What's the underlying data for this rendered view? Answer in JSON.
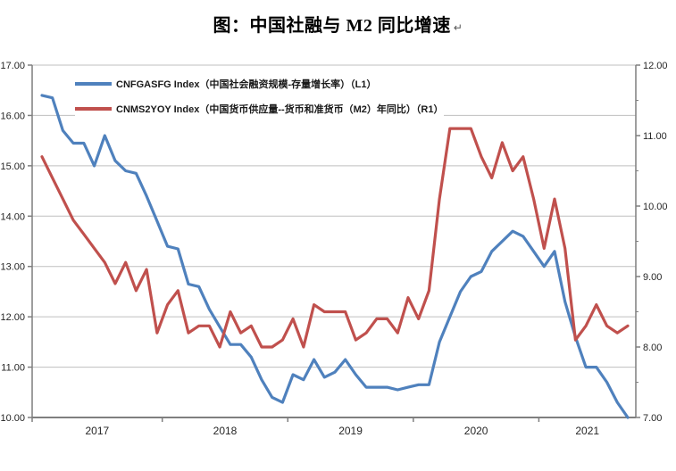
{
  "title": {
    "text": "图：中国社融与 M2 同比增速",
    "paragraph_mark": "↵"
  },
  "legend": {
    "items": [
      {
        "label": "CNFGASFG Index（中国社会融资规模-存量增长率）（L1）",
        "color": "#4F81BD"
      },
      {
        "label": "CNMS2YOY Index（中国货币供应量--货币和准货币（M2）年同比）（R1）",
        "color": "#C0504D"
      }
    ]
  },
  "chart_data": {
    "type": "line",
    "title": "图：中国社融与 M2 同比增速",
    "x_monthly_start": "2017-01",
    "x_monthly_end": "2021-09",
    "x_tick_labels": [
      "2017",
      "2018",
      "2019",
      "2020",
      "2021"
    ],
    "left_axis": {
      "min": 10,
      "max": 17,
      "tick_step": 1,
      "tick_labels": [
        "17.00",
        "16.00",
        "15.00",
        "14.00",
        "13.00",
        "12.00",
        "11.00",
        "10.00"
      ]
    },
    "right_axis": {
      "min": 7,
      "max": 12,
      "tick_step": 1,
      "minor_tick_step": 0.5,
      "tick_labels": [
        "12.00",
        "11.00",
        "10.00",
        "9.00",
        "8.00",
        "7.00"
      ]
    },
    "grid": {
      "horizontal": true,
      "color": "#BFBFBF",
      "axis_color": "#7F7F7F"
    },
    "legend_position": "top-left-inside",
    "series": [
      {
        "name": "CNFGASFG Index（中国社会融资规模-存量增长率）（L1）",
        "axis": "left",
        "color": "#4F81BD",
        "values": [
          16.4,
          16.35,
          15.7,
          15.45,
          15.45,
          15.0,
          15.6,
          15.1,
          14.9,
          14.85,
          14.4,
          13.9,
          13.4,
          13.35,
          12.65,
          12.6,
          12.15,
          11.8,
          11.45,
          11.45,
          11.2,
          10.75,
          10.4,
          10.3,
          10.85,
          10.75,
          11.15,
          10.8,
          10.9,
          11.15,
          10.85,
          10.6,
          10.6,
          10.6,
          10.55,
          10.6,
          10.65,
          10.65,
          11.5,
          12.0,
          12.5,
          12.8,
          12.9,
          13.3,
          13.5,
          13.7,
          13.6,
          13.3,
          13.0,
          13.3,
          12.3,
          11.6,
          11.0,
          11.0,
          10.7,
          10.3,
          10.0
        ]
      },
      {
        "name": "CNMS2YOY Index（中国货币供应量--货币和准货币（M2）年同比）（R1）",
        "axis": "right",
        "color": "#C0504D",
        "values": [
          10.7,
          10.4,
          10.1,
          9.8,
          9.6,
          9.4,
          9.2,
          8.9,
          9.2,
          8.8,
          9.1,
          8.2,
          8.6,
          8.8,
          8.2,
          8.3,
          8.3,
          8.0,
          8.5,
          8.2,
          8.3,
          8.0,
          8.0,
          8.1,
          8.4,
          8.0,
          8.6,
          8.5,
          8.5,
          8.5,
          8.1,
          8.2,
          8.4,
          8.4,
          8.2,
          8.7,
          8.4,
          8.8,
          10.1,
          11.1,
          11.1,
          11.1,
          10.7,
          10.4,
          10.9,
          10.5,
          10.7,
          10.1,
          9.4,
          10.1,
          9.4,
          8.1,
          8.3,
          8.6,
          8.3,
          8.2,
          8.3
        ]
      }
    ]
  }
}
